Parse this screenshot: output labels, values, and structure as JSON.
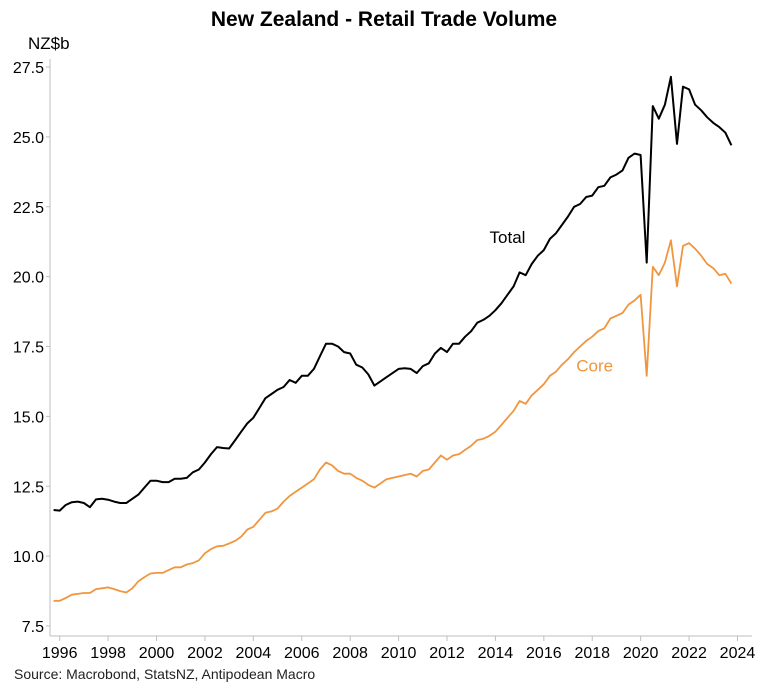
{
  "chart_data": {
    "type": "line",
    "title": "New Zealand - Retail Trade Volume",
    "ylabel": "NZ$b",
    "xlabel": "",
    "source": "Source: Macrobond, StatsNZ, Antipodean Macro",
    "xlim": [
      1995.6,
      2024.6
    ],
    "ylim": [
      7.5,
      27.5
    ],
    "y_ticks": [
      "7.5",
      "10.0",
      "12.5",
      "15.0",
      "17.5",
      "20.0",
      "22.5",
      "25.0",
      "27.5"
    ],
    "x_ticks": [
      "1996",
      "1998",
      "2000",
      "2002",
      "2004",
      "2006",
      "2008",
      "2010",
      "2012",
      "2014",
      "2016",
      "2018",
      "2020",
      "2022",
      "2024"
    ],
    "grid": false,
    "series": [
      {
        "name": "Total",
        "color": "#000000",
        "x": [
          1995.75,
          1996.0,
          1996.25,
          1996.5,
          1996.75,
          1997.0,
          1997.25,
          1997.5,
          1997.75,
          1998.0,
          1998.25,
          1998.5,
          1998.75,
          1999.0,
          1999.25,
          1999.5,
          1999.75,
          2000.0,
          2000.25,
          2000.5,
          2000.75,
          2001.0,
          2001.25,
          2001.5,
          2001.75,
          2002.0,
          2002.25,
          2002.5,
          2002.75,
          2003.0,
          2003.25,
          2003.5,
          2003.75,
          2004.0,
          2004.25,
          2004.5,
          2004.75,
          2005.0,
          2005.25,
          2005.5,
          2005.75,
          2006.0,
          2006.25,
          2006.5,
          2006.75,
          2007.0,
          2007.25,
          2007.5,
          2007.75,
          2008.0,
          2008.25,
          2008.5,
          2008.75,
          2009.0,
          2009.25,
          2009.5,
          2009.75,
          2010.0,
          2010.25,
          2010.5,
          2010.75,
          2011.0,
          2011.25,
          2011.5,
          2011.75,
          2012.0,
          2012.25,
          2012.5,
          2012.75,
          2013.0,
          2013.25,
          2013.5,
          2013.75,
          2014.0,
          2014.25,
          2014.5,
          2014.75,
          2015.0,
          2015.25,
          2015.5,
          2015.75,
          2016.0,
          2016.25,
          2016.5,
          2016.75,
          2017.0,
          2017.25,
          2017.5,
          2017.75,
          2018.0,
          2018.25,
          2018.5,
          2018.75,
          2019.0,
          2019.25,
          2019.5,
          2019.75,
          2020.0,
          2020.25,
          2020.5,
          2020.75,
          2021.0,
          2021.25,
          2021.5,
          2021.75,
          2022.0,
          2022.25,
          2022.5,
          2022.75,
          2023.0,
          2023.25,
          2023.5,
          2023.75
        ],
        "values": [
          11.65,
          11.63,
          11.83,
          11.93,
          11.95,
          11.9,
          11.75,
          12.03,
          12.05,
          12.02,
          11.95,
          11.9,
          11.9,
          12.05,
          12.2,
          12.45,
          12.7,
          12.7,
          12.65,
          12.65,
          12.77,
          12.77,
          12.8,
          13.0,
          13.1,
          13.35,
          13.65,
          13.9,
          13.87,
          13.85,
          14.15,
          14.45,
          14.75,
          14.95,
          15.3,
          15.65,
          15.8,
          15.95,
          16.05,
          16.3,
          16.2,
          16.45,
          16.45,
          16.7,
          17.15,
          17.6,
          17.6,
          17.5,
          17.3,
          17.25,
          16.85,
          16.75,
          16.5,
          16.1,
          16.25,
          16.4,
          16.55,
          16.7,
          16.72,
          16.7,
          16.55,
          16.8,
          16.9,
          17.25,
          17.45,
          17.3,
          17.6,
          17.6,
          17.85,
          18.05,
          18.35,
          18.45,
          18.6,
          18.8,
          19.05,
          19.35,
          19.65,
          20.15,
          20.05,
          20.45,
          20.75,
          20.95,
          21.35,
          21.55,
          21.85,
          22.15,
          22.5,
          22.6,
          22.85,
          22.9,
          23.2,
          23.25,
          23.55,
          23.65,
          23.8,
          24.25,
          24.4,
          24.35,
          20.5,
          26.1,
          25.65,
          26.15,
          27.15,
          24.75,
          26.8,
          26.7,
          26.15,
          25.95,
          25.7,
          25.5,
          25.35,
          25.15,
          24.7
        ]
      },
      {
        "name": "Core",
        "color": "#f0963f",
        "x": [
          1995.75,
          1996.0,
          1996.25,
          1996.5,
          1996.75,
          1997.0,
          1997.25,
          1997.5,
          1997.75,
          1998.0,
          1998.25,
          1998.5,
          1998.75,
          1999.0,
          1999.25,
          1999.5,
          1999.75,
          2000.0,
          2000.25,
          2000.5,
          2000.75,
          2001.0,
          2001.25,
          2001.5,
          2001.75,
          2002.0,
          2002.25,
          2002.5,
          2002.75,
          2003.0,
          2003.25,
          2003.5,
          2003.75,
          2004.0,
          2004.25,
          2004.5,
          2004.75,
          2005.0,
          2005.25,
          2005.5,
          2005.75,
          2006.0,
          2006.25,
          2006.5,
          2006.75,
          2007.0,
          2007.25,
          2007.5,
          2007.75,
          2008.0,
          2008.25,
          2008.5,
          2008.75,
          2009.0,
          2009.25,
          2009.5,
          2009.75,
          2010.0,
          2010.25,
          2010.5,
          2010.75,
          2011.0,
          2011.25,
          2011.5,
          2011.75,
          2012.0,
          2012.25,
          2012.5,
          2012.75,
          2013.0,
          2013.25,
          2013.5,
          2013.75,
          2014.0,
          2014.25,
          2014.5,
          2014.75,
          2015.0,
          2015.25,
          2015.5,
          2015.75,
          2016.0,
          2016.25,
          2016.5,
          2016.75,
          2017.0,
          2017.25,
          2017.5,
          2017.75,
          2018.0,
          2018.25,
          2018.5,
          2018.75,
          2019.0,
          2019.25,
          2019.5,
          2019.75,
          2020.0,
          2020.25,
          2020.5,
          2020.75,
          2021.0,
          2021.25,
          2021.5,
          2021.75,
          2022.0,
          2022.25,
          2022.5,
          2022.75,
          2023.0,
          2023.25,
          2023.5,
          2023.75
        ],
        "values": [
          8.4,
          8.4,
          8.5,
          8.62,
          8.65,
          8.68,
          8.68,
          8.82,
          8.85,
          8.88,
          8.82,
          8.75,
          8.7,
          8.85,
          9.1,
          9.25,
          9.38,
          9.4,
          9.4,
          9.5,
          9.6,
          9.6,
          9.7,
          9.75,
          9.85,
          10.1,
          10.25,
          10.35,
          10.37,
          10.45,
          10.55,
          10.7,
          10.95,
          11.05,
          11.3,
          11.55,
          11.6,
          11.7,
          11.95,
          12.15,
          12.3,
          12.45,
          12.6,
          12.75,
          13.1,
          13.35,
          13.25,
          13.05,
          12.95,
          12.95,
          12.8,
          12.7,
          12.55,
          12.45,
          12.6,
          12.75,
          12.8,
          12.85,
          12.9,
          12.95,
          12.85,
          13.05,
          13.1,
          13.35,
          13.6,
          13.45,
          13.6,
          13.65,
          13.8,
          13.95,
          14.15,
          14.2,
          14.3,
          14.45,
          14.7,
          14.95,
          15.2,
          15.55,
          15.45,
          15.75,
          15.95,
          16.15,
          16.45,
          16.6,
          16.85,
          17.05,
          17.3,
          17.5,
          17.7,
          17.85,
          18.05,
          18.15,
          18.5,
          18.6,
          18.7,
          19.0,
          19.15,
          19.35,
          16.45,
          20.35,
          20.05,
          20.5,
          21.3,
          19.65,
          21.1,
          21.2,
          21.0,
          20.75,
          20.45,
          20.3,
          20.05,
          20.1,
          19.75
        ]
      }
    ],
    "labels": [
      {
        "text": "Total",
        "series": 0,
        "x": 2014.5,
        "y": 21.2
      },
      {
        "text": "Core",
        "series": 1,
        "x": 2018.1,
        "y": 16.6
      }
    ]
  }
}
